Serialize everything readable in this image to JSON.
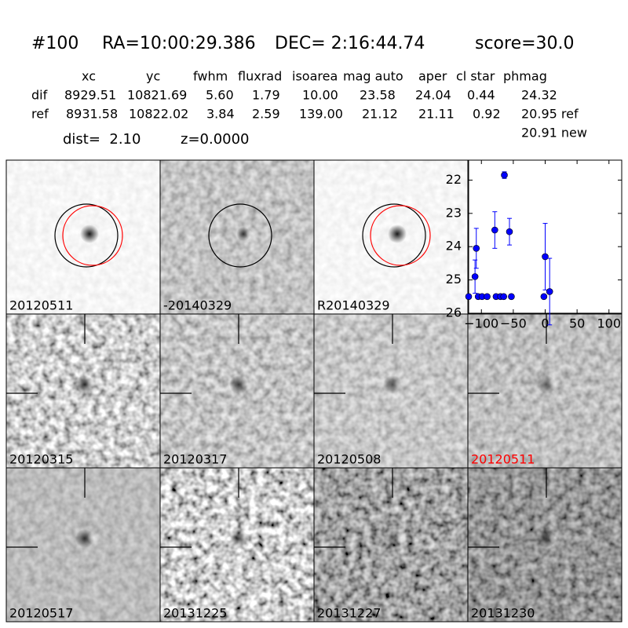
{
  "header": {
    "id": "#100",
    "ra": "RA=10:00:29.386",
    "dec": "DEC= 2:16:44.74",
    "score": "score=30.0"
  },
  "table": {
    "columns": [
      "xc",
      "yc",
      "fwhm",
      "fluxrad",
      "isoarea",
      "mag auto",
      "aper",
      "cl star",
      "phmag"
    ],
    "rows": [
      [
        "dif",
        "8929.51",
        "10821.69",
        "5.60",
        "1.79",
        "10.00",
        "23.58",
        "24.04",
        "0.44",
        "24.32"
      ],
      [
        "ref",
        "8931.58",
        "10822.02",
        "3.84",
        "2.59",
        "139.00",
        "21.12",
        "21.11",
        "0.92",
        "20.95 ref"
      ]
    ],
    "new_mag": "20.91 new"
  },
  "dist": "dist=  2.10",
  "z": "z=0.0000",
  "stamps": [
    {
      "label": "20120511",
      "color": "#000000"
    },
    {
      "label": "-20140329",
      "color": "#000000"
    },
    {
      "label": "R20140329",
      "color": "#000000"
    },
    {
      "label": "20120315",
      "color": "#000000"
    },
    {
      "label": "20120317",
      "color": "#000000"
    },
    {
      "label": "20120508",
      "color": "#000000"
    },
    {
      "label": "20120511",
      "color": "#ff0000"
    },
    {
      "label": "20120517",
      "color": "#000000"
    },
    {
      "label": "20131225",
      "color": "#000000"
    },
    {
      "label": "20131227",
      "color": "#000000"
    },
    {
      "label": "20131230",
      "color": "#000000"
    }
  ],
  "chart_data": {
    "type": "errorbar",
    "xlim": [
      -120,
      120
    ],
    "ylim": [
      26,
      21.4
    ],
    "xticks": [
      {
        "value": -100,
        "label": "−100"
      },
      {
        "value": -50,
        "label": "−50"
      },
      0,
      50,
      100
    ],
    "yticks": [
      22,
      23,
      24,
      25,
      26
    ],
    "series": [
      {
        "color": "#0000ff",
        "x": [
          -120,
          -110,
          -108,
          -105,
          -99,
          -91,
          -79,
          -77,
          -70,
          -65,
          -64,
          -56,
          -53,
          -2,
          0,
          7
        ],
        "values": [
          25.5,
          24.9,
          24.05,
          25.5,
          25.5,
          25.5,
          23.5,
          25.5,
          25.5,
          25.5,
          21.85,
          23.55,
          25.5,
          25.5,
          24.3,
          25.35
        ],
        "errors": [
          null,
          0.5,
          0.6,
          null,
          null,
          null,
          0.55,
          null,
          null,
          null,
          0.1,
          0.4,
          null,
          null,
          1.0,
          1.0
        ]
      }
    ]
  }
}
